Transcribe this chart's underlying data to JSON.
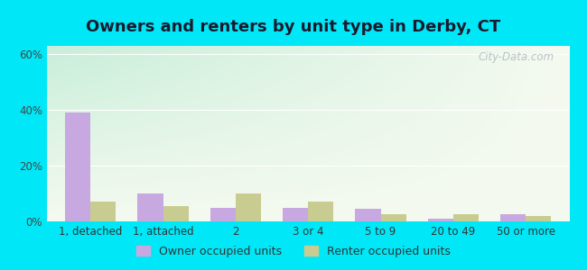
{
  "title": "Owners and renters by unit type in Derby, CT",
  "categories": [
    "1, detached",
    "1, attached",
    "2",
    "3 or 4",
    "5 to 9",
    "20 to 49",
    "50 or more"
  ],
  "owner_values": [
    39,
    10,
    5,
    5,
    4.5,
    1,
    2.5
  ],
  "renter_values": [
    7,
    5.5,
    10,
    7,
    2.5,
    2.5,
    2
  ],
  "owner_color": "#c8a8e0",
  "renter_color": "#c8cc90",
  "ylim": [
    0,
    63
  ],
  "yticks": [
    0,
    20,
    40,
    60
  ],
  "ytick_labels": [
    "0%",
    "20%",
    "40%",
    "60%"
  ],
  "bar_width": 0.35,
  "background_outer": "#00e8f8",
  "grad_top_left": "#c8eeda",
  "grad_bottom_right": "#f5faf0",
  "legend_label_owner": "Owner occupied units",
  "legend_label_renter": "Renter occupied units",
  "watermark": "City-Data.com",
  "title_fontsize": 13,
  "label_fontsize": 8.5,
  "legend_fontsize": 9,
  "grid_color": "#ffffff",
  "title_color": "#1a1a2e"
}
